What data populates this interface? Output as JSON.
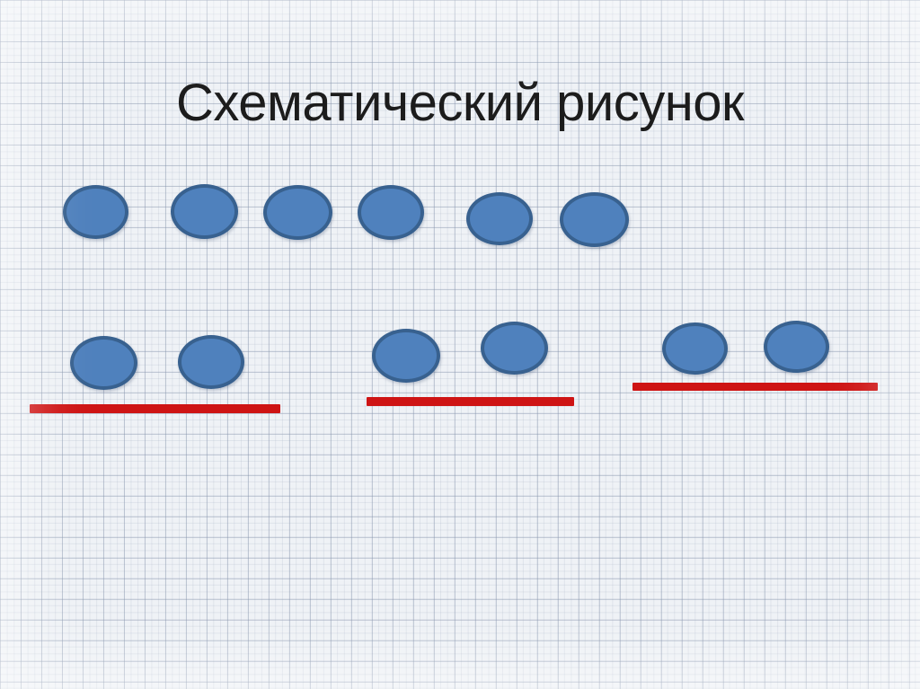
{
  "slide": {
    "title": "Схематический рисунок"
  },
  "colors": {
    "title_text": "#1C1C1C",
    "oval_fill": "#4F81BD",
    "oval_border": "#38618F",
    "underline_red": "#CE1414",
    "paper_background": "#EFF2F6"
  },
  "diagram": {
    "top_row": {
      "oval_count": 6
    },
    "groups": [
      {
        "oval_count": 2,
        "has_underline": true
      },
      {
        "oval_count": 2,
        "has_underline": true
      },
      {
        "oval_count": 2,
        "has_underline": true
      }
    ]
  }
}
